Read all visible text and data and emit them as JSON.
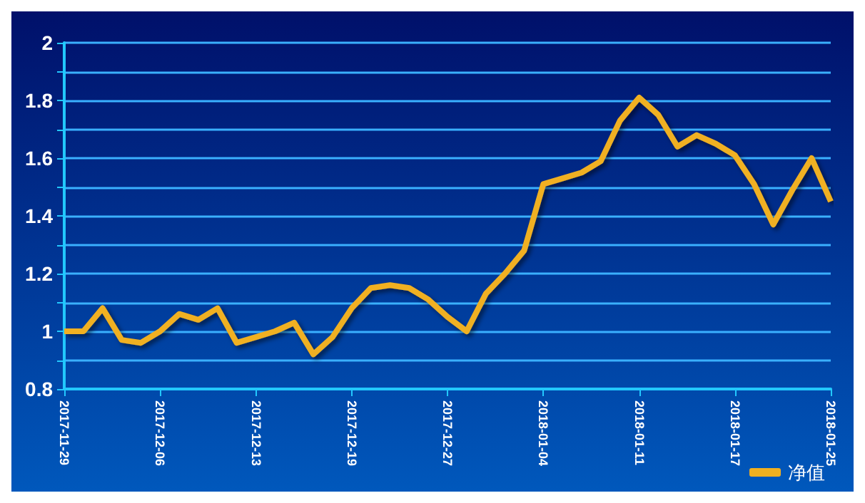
{
  "chart_data": {
    "type": "line",
    "categories": [
      "2017-11-29",
      null,
      null,
      null,
      null,
      "2017-12-06",
      null,
      null,
      null,
      null,
      "2017-12-13",
      null,
      null,
      null,
      null,
      "2017-12-19",
      null,
      null,
      null,
      null,
      "2017-12-27",
      null,
      null,
      null,
      null,
      "2018-01-04",
      null,
      null,
      null,
      null,
      "2018-01-11",
      null,
      null,
      null,
      null,
      "2018-01-17",
      null,
      null,
      null,
      null,
      "2018-01-25"
    ],
    "series": [
      {
        "name": "净值",
        "color": "#f0b020",
        "values": [
          1.0,
          1.0,
          1.08,
          0.97,
          0.96,
          1.0,
          1.06,
          1.04,
          1.08,
          0.96,
          0.98,
          1.0,
          1.03,
          0.92,
          0.98,
          1.08,
          1.15,
          1.16,
          1.15,
          1.11,
          1.05,
          1.0,
          1.13,
          1.2,
          1.28,
          1.51,
          1.53,
          1.55,
          1.59,
          1.73,
          1.81,
          1.75,
          1.64,
          1.68,
          1.65,
          1.61,
          1.51,
          1.37,
          1.49,
          1.6,
          1.45
        ]
      }
    ],
    "ylim": [
      0.8,
      2
    ],
    "yticks": [
      0.8,
      {
        "value": 0.9,
        "label": null
      },
      1,
      {
        "value": 1.1,
        "label": null
      },
      1.2,
      {
        "value": 1.3,
        "label": null
      },
      1.4,
      {
        "value": 1.5,
        "label": null
      },
      1.6,
      {
        "value": 1.7,
        "label": null
      },
      1.8,
      {
        "value": 1.9,
        "label": null
      },
      2
    ],
    "grid": "y",
    "legend": "bottom right",
    "marker": "none",
    "line_style": "solid"
  }
}
